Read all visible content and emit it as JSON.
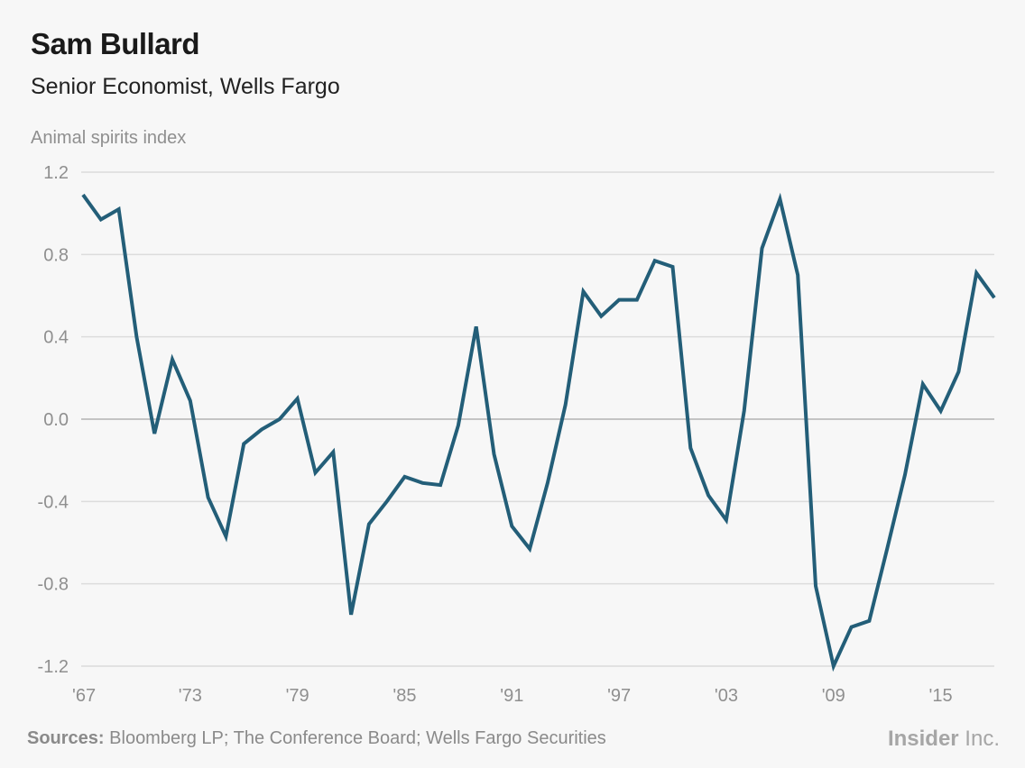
{
  "header": {
    "title": "Sam Bullard",
    "subtitle": "Senior Economist, Wells Fargo"
  },
  "footer": {
    "source_label": "Sources:",
    "source_text": "Bloomberg LP; The Conference Board; Wells Fargo Securities",
    "brand_bold": "Insider",
    "brand_light": " Inc."
  },
  "colors": {
    "line": "#235e78",
    "grid": "#dcdcdc",
    "zero_line": "#c4c4c4",
    "axis_text": "#8f8f8f"
  },
  "chart_data": {
    "type": "line",
    "title": "Sam Bullard",
    "subtitle": "Senior Economist, Wells Fargo",
    "ylabel": "Animal spirits index",
    "xlabel": "",
    "ylim": [
      -1.2,
      1.2
    ],
    "yticks": [
      1.2,
      0.8,
      0.4,
      0.0,
      -0.4,
      -0.8,
      -1.2
    ],
    "ytick_labels": [
      "1.2",
      "0.8",
      "0.4",
      "0.0",
      "-0.4",
      "-0.8",
      "-1.2"
    ],
    "xlim": [
      1967,
      2018
    ],
    "xticks": [
      1967,
      1973,
      1979,
      1985,
      1991,
      1997,
      2003,
      2009,
      2015
    ],
    "xtick_labels": [
      "'67",
      "'73",
      "'79",
      "'85",
      "'91",
      "'97",
      "'03",
      "'09",
      "'15"
    ],
    "grid": true,
    "legend": "none",
    "series": [
      {
        "x": [
          1967,
          1968,
          1969,
          1970,
          1971,
          1972,
          1973,
          1974,
          1975,
          1976,
          1977,
          1978,
          1979,
          1980,
          1981,
          1982,
          1983,
          1984,
          1985,
          1986,
          1987,
          1988,
          1989,
          1990,
          1991,
          1992,
          1993,
          1994,
          1995,
          1996,
          1997,
          1998,
          1999,
          2000,
          2001,
          2002,
          2003,
          2004,
          2005,
          2006,
          2007,
          2008,
          2009,
          2010,
          2011,
          2012,
          2013,
          2014,
          2015,
          2016,
          2017,
          2018
        ],
        "values": [
          1.09,
          0.97,
          1.02,
          0.4,
          -0.07,
          0.29,
          0.09,
          -0.38,
          -0.57,
          -0.12,
          -0.05,
          0.0,
          0.1,
          -0.26,
          -0.16,
          -0.95,
          -0.51,
          -0.4,
          -0.28,
          -0.31,
          -0.32,
          -0.03,
          0.45,
          -0.17,
          -0.52,
          -0.63,
          -0.31,
          0.07,
          0.62,
          0.5,
          0.58,
          0.58,
          0.77,
          0.74,
          -0.14,
          -0.37,
          -0.49,
          0.04,
          0.83,
          1.07,
          0.7,
          -0.81,
          -1.2,
          -1.01,
          -0.98,
          -0.63,
          -0.27,
          0.17,
          0.04,
          0.23,
          0.71,
          0.59
        ]
      }
    ]
  }
}
